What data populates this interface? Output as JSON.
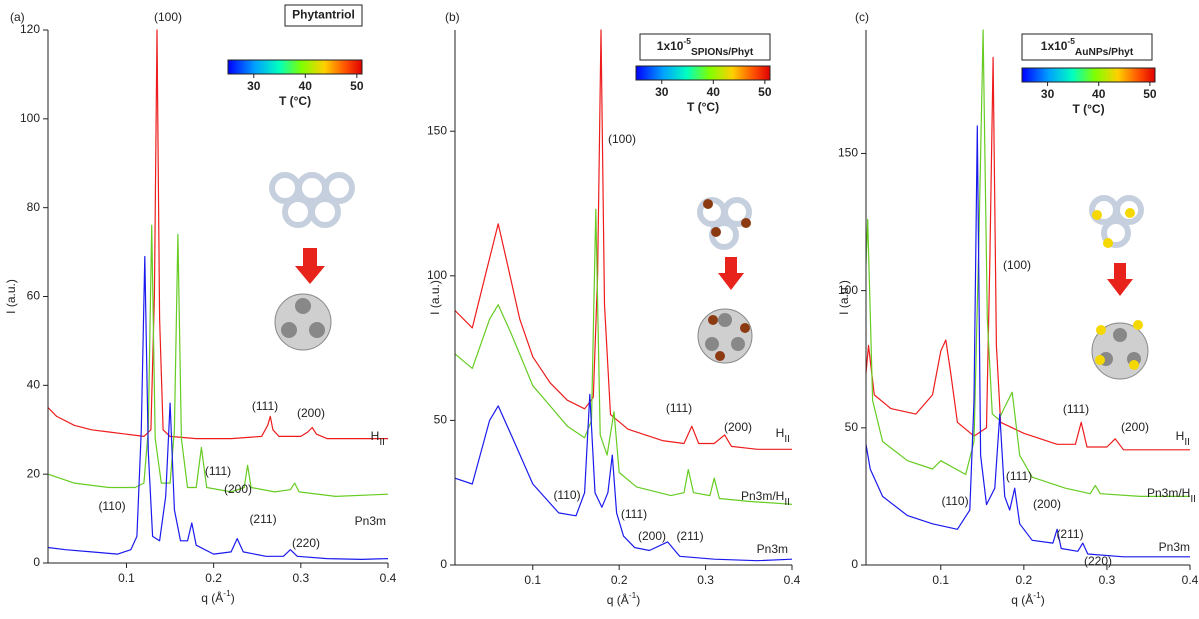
{
  "chart_data": [
    {
      "type": "line",
      "panel": "(a)",
      "ylabel": "I (a.u.)",
      "xlabel": {
        "text": "q (Å",
        "sup": "-1",
        "rest": ")"
      },
      "xlim": [
        0.01,
        0.4
      ],
      "xticks": [
        0.1,
        0.2,
        0.3,
        0.4
      ],
      "ylim": [
        0,
        120
      ],
      "yticks": [
        0,
        20,
        40,
        60,
        80,
        100,
        120
      ],
      "colorbar": {
        "title": {
          "text": "Phytantriol"
        },
        "lim": [
          25,
          51
        ],
        "ticks": [
          30,
          40,
          50
        ],
        "label": "T (°C)"
      },
      "series": [
        {
          "color": "#ee1c1c",
          "x": [
            0.01,
            0.02,
            0.04,
            0.06,
            0.08,
            0.1,
            0.12,
            0.128,
            0.132,
            0.135,
            0.138,
            0.142,
            0.15,
            0.18,
            0.22,
            0.255,
            0.262,
            0.265,
            0.268,
            0.275,
            0.3,
            0.308,
            0.313,
            0.318,
            0.33,
            0.36,
            0.4
          ],
          "values": [
            35,
            33,
            31,
            30,
            29.5,
            29,
            28.5,
            30,
            60,
            120,
            55,
            30,
            28.5,
            28,
            28,
            28.5,
            31,
            33,
            30,
            28.5,
            28.5,
            29.5,
            30.5,
            29,
            28,
            28,
            28
          ]
        },
        {
          "color": "#66cc22",
          "x": [
            0.01,
            0.04,
            0.08,
            0.11,
            0.12,
            0.125,
            0.129,
            0.133,
            0.14,
            0.15,
            0.155,
            0.159,
            0.163,
            0.17,
            0.18,
            0.186,
            0.192,
            0.22,
            0.235,
            0.239,
            0.243,
            0.27,
            0.288,
            0.293,
            0.298,
            0.34,
            0.4
          ],
          "values": [
            20,
            18,
            17,
            17,
            18,
            30,
            76,
            28,
            18,
            18,
            30,
            74,
            28,
            17,
            17,
            26,
            17,
            16,
            17,
            22,
            17,
            16,
            16.5,
            18,
            16,
            15,
            15.5
          ]
        },
        {
          "color": "#1a1aee",
          "x": [
            0.01,
            0.03,
            0.06,
            0.09,
            0.105,
            0.112,
            0.117,
            0.121,
            0.125,
            0.13,
            0.138,
            0.145,
            0.15,
            0.155,
            0.162,
            0.17,
            0.175,
            0.18,
            0.2,
            0.22,
            0.227,
            0.234,
            0.26,
            0.28,
            0.288,
            0.296,
            0.33,
            0.37,
            0.4
          ],
          "values": [
            3.5,
            3,
            2.5,
            2,
            3,
            6,
            30,
            69,
            25,
            6,
            5,
            15,
            36,
            12,
            5,
            5,
            9,
            4,
            2,
            2.5,
            5.5,
            2.5,
            1.5,
            1.5,
            3,
            1.5,
            1,
            0.8,
            1
          ]
        }
      ],
      "annotations": [
        {
          "text": "(100)"
        },
        {
          "text": "(111)"
        },
        {
          "text": "(200)"
        },
        {
          "text": "(110)"
        },
        {
          "text": "(111)"
        },
        {
          "text": "(200)"
        },
        {
          "text": "(211)"
        },
        {
          "text": "(220)"
        },
        {
          "text": "H",
          "sub": "II"
        },
        {
          "text": "Pn3m"
        }
      ]
    },
    {
      "type": "line",
      "panel": "(b)",
      "ylabel": "I (a.u.)",
      "xlabel": {
        "text": "q (Å",
        "sup": "-1",
        "rest": ")"
      },
      "xlim": [
        0.01,
        0.4
      ],
      "xticks": [
        0.1,
        0.2,
        0.3,
        0.4
      ],
      "ylim": [
        0,
        185
      ],
      "yticks": [
        0,
        50,
        100,
        150
      ],
      "colorbar": {
        "title": {
          "text": "1x10",
          "sup": "-5",
          "sub": "SPIONs/Phyt"
        },
        "lim": [
          25,
          51
        ],
        "ticks": [
          30,
          40,
          50
        ],
        "label": "T (°C)"
      },
      "series": [
        {
          "color": "#ee1c1c",
          "x": [
            0.01,
            0.03,
            0.045,
            0.055,
            0.06,
            0.07,
            0.085,
            0.1,
            0.12,
            0.14,
            0.16,
            0.17,
            0.175,
            0.179,
            0.183,
            0.19,
            0.21,
            0.25,
            0.275,
            0.284,
            0.292,
            0.31,
            0.322,
            0.33,
            0.36,
            0.4
          ],
          "values": [
            88,
            82,
            100,
            112,
            118,
            105,
            85,
            72,
            63,
            57,
            54,
            58,
            100,
            185,
            90,
            52,
            47,
            43,
            42,
            48,
            42,
            42,
            45,
            41,
            40,
            40
          ]
        },
        {
          "color": "#66cc22",
          "x": [
            0.01,
            0.03,
            0.05,
            0.06,
            0.075,
            0.1,
            0.12,
            0.14,
            0.16,
            0.168,
            0.173,
            0.178,
            0.186,
            0.194,
            0.2,
            0.22,
            0.26,
            0.275,
            0.28,
            0.286,
            0.305,
            0.31,
            0.316,
            0.35,
            0.4
          ],
          "values": [
            73,
            68,
            85,
            90,
            80,
            62,
            55,
            48,
            44,
            50,
            123,
            45,
            38,
            53,
            32,
            27,
            24,
            25,
            33,
            25,
            24,
            30,
            23,
            22,
            21
          ]
        },
        {
          "color": "#1a1aee",
          "x": [
            0.01,
            0.03,
            0.05,
            0.06,
            0.075,
            0.1,
            0.13,
            0.15,
            0.16,
            0.166,
            0.172,
            0.18,
            0.187,
            0.192,
            0.197,
            0.205,
            0.218,
            0.235,
            0.256,
            0.27,
            0.31,
            0.36,
            0.4
          ],
          "values": [
            30,
            28,
            50,
            55,
            45,
            28,
            18,
            17,
            25,
            59,
            25,
            20,
            25,
            38,
            18,
            10,
            6,
            5,
            8,
            3,
            2,
            1.5,
            2
          ]
        }
      ],
      "annotations": [
        {
          "text": "(100)"
        },
        {
          "text": "(111)"
        },
        {
          "text": "(200)"
        },
        {
          "text": "(110)"
        },
        {
          "text": "(111)"
        },
        {
          "text": "(200)"
        },
        {
          "text": "(211)"
        },
        {
          "text": "H",
          "sub": "II"
        },
        {
          "text": "Pn3m/H",
          "sub": "II"
        },
        {
          "text": "Pn3m"
        }
      ]
    },
    {
      "type": "line",
      "panel": "(c)",
      "ylabel": "I (a.u.)",
      "xlabel": {
        "text": "q (Å",
        "sup": "-1",
        "rest": ")"
      },
      "xlim": [
        0.01,
        0.4
      ],
      "xticks": [
        0.1,
        0.2,
        0.3,
        0.4
      ],
      "ylim": [
        0,
        195
      ],
      "yticks": [
        0,
        50,
        100,
        150
      ],
      "colorbar": {
        "title": {
          "text": "1x10",
          "sup": "-5",
          "sub": "AuNPs/Phyt"
        },
        "lim": [
          25,
          51
        ],
        "ticks": [
          30,
          40,
          50
        ],
        "label": "T (°C)"
      },
      "series": [
        {
          "color": "#ee1c1c",
          "x": [
            0.01,
            0.013,
            0.02,
            0.04,
            0.07,
            0.09,
            0.1,
            0.106,
            0.112,
            0.12,
            0.14,
            0.155,
            0.159,
            0.163,
            0.167,
            0.172,
            0.2,
            0.24,
            0.262,
            0.269,
            0.276,
            0.3,
            0.31,
            0.32,
            0.36,
            0.4
          ],
          "values": [
            70,
            80,
            62,
            57,
            55,
            62,
            78,
            82,
            70,
            52,
            47,
            50,
            110,
            185,
            80,
            52,
            48,
            44,
            44,
            52,
            43,
            43,
            46,
            42,
            42,
            42
          ]
        },
        {
          "color": "#66cc22",
          "x": [
            0.01,
            0.012,
            0.018,
            0.03,
            0.06,
            0.09,
            0.1,
            0.13,
            0.14,
            0.146,
            0.151,
            0.156,
            0.162,
            0.17,
            0.176,
            0.186,
            0.195,
            0.21,
            0.25,
            0.28,
            0.286,
            0.292,
            0.34,
            0.4
          ],
          "values": [
            110,
            126,
            60,
            45,
            38,
            35,
            38,
            33,
            45,
            120,
            195,
            90,
            55,
            53,
            57,
            63,
            40,
            32,
            28,
            26,
            29,
            26,
            25,
            25
          ]
        },
        {
          "color": "#1a1aee",
          "x": [
            0.01,
            0.015,
            0.03,
            0.06,
            0.09,
            0.12,
            0.135,
            0.14,
            0.144,
            0.148,
            0.155,
            0.165,
            0.171,
            0.177,
            0.183,
            0.189,
            0.195,
            0.21,
            0.235,
            0.24,
            0.245,
            0.265,
            0.271,
            0.277,
            0.32,
            0.4
          ],
          "values": [
            44,
            35,
            25,
            18,
            15,
            13,
            20,
            60,
            160,
            40,
            22,
            28,
            55,
            25,
            20,
            28,
            15,
            9,
            8,
            13,
            6,
            5,
            8,
            4,
            3,
            3
          ]
        }
      ],
      "annotations": [
        {
          "text": "(100)"
        },
        {
          "text": "(111)"
        },
        {
          "text": "(200)"
        },
        {
          "text": "(110)"
        },
        {
          "text": "(111)"
        },
        {
          "text": "(200)"
        },
        {
          "text": "(211)"
        },
        {
          "text": "(220)"
        },
        {
          "text": "H",
          "sub": "II"
        },
        {
          "text": "Pn3m/H",
          "sub": "II"
        },
        {
          "text": "Pn3m"
        }
      ]
    }
  ]
}
